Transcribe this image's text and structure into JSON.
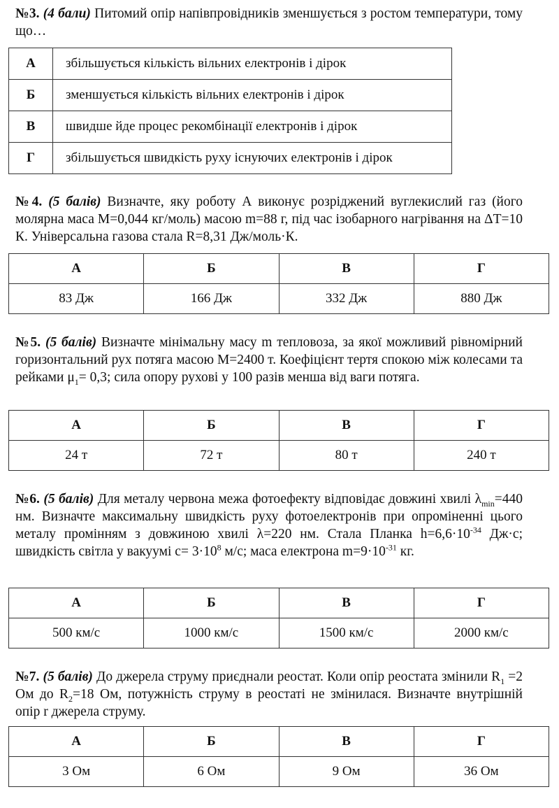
{
  "q3": {
    "num": "№3.",
    "points": "(4 бали)",
    "parts": [
      {
        "t": "Питомий опір напівпровідників зменшується з ростом температури, тому що…"
      }
    ],
    "options": [
      {
        "letter": "А",
        "text": "збільшується кількість вільних електронів і дірок"
      },
      {
        "letter": "Б",
        "text": "зменшується кількість вільних електронів і дірок"
      },
      {
        "letter": "В",
        "text": "швидше йде процес рекомбінації електронів і дірок"
      },
      {
        "letter": "Г",
        "text": "збільшується швидкість руху існуючих електронів і дірок"
      }
    ]
  },
  "q4": {
    "num": "№4.",
    "points": "(5 балів)",
    "parts": [
      {
        "t": "Визначте, яку роботу А виконує розріджений вуглекислий газ (його молярна маса М=0,044 кг/моль) масою m=88 г, під час ізобарного нагрівання на ΔТ=10 К. Універсальна газова стала R=8,31 Дж/моль·К."
      }
    ],
    "letters": [
      "А",
      "Б",
      "В",
      "Г"
    ],
    "answers": [
      "83 Дж",
      "166 Дж",
      "332 Дж",
      "880 Дж"
    ]
  },
  "q5": {
    "num": "№5.",
    "points": "(5 балів)",
    "parts": [
      {
        "t": "Визначте мінімальну масу m тепловоза, за якої можливий рівномірний горизонтальний рух потяга масою М=2400 т. Коефіцієнт тертя спокою між колесами та рейками μ"
      },
      {
        "t": "1",
        "s": "sub"
      },
      {
        "t": "= 0,3; сила опору рухові у 100 разів менша від ваги потяга."
      }
    ],
    "letters": [
      "А",
      "Б",
      "В",
      "Г"
    ],
    "answers": [
      "24 т",
      "72 т",
      "80 т",
      "240 т"
    ]
  },
  "q6": {
    "num": "№6.",
    "points": "(5 балів)",
    "parts": [
      {
        "t": "Для металу червона межа фотоефекту відповідає довжині хвилі λ"
      },
      {
        "t": "min",
        "s": "sub"
      },
      {
        "t": "=440 нм. Визначте максимальну швидкість руху фотоелектронів при опроміненні цього металу промінням з довжиною хвилі λ=220 нм. Стала Планка h=6,6·10"
      },
      {
        "t": "-34",
        "s": "sup"
      },
      {
        "t": " Дж·с; швидкість світла у вакуумі с= 3·10"
      },
      {
        "t": "8",
        "s": "sup"
      },
      {
        "t": " м/с; маса електрона m=9·10"
      },
      {
        "t": "-31",
        "s": "sup"
      },
      {
        "t": " кг."
      }
    ],
    "letters": [
      "А",
      "Б",
      "В",
      "Г"
    ],
    "answers": [
      "500 км/с",
      "1000 км/с",
      "1500 км/с",
      "2000 км/с"
    ]
  },
  "q7": {
    "num": "№7.",
    "points": "(5 балів)",
    "parts": [
      {
        "t": "До джерела струму приєднали реостат. Коли опір реостата змінили R"
      },
      {
        "t": "1",
        "s": "sub"
      },
      {
        "t": " =2 Ом до R"
      },
      {
        "t": "2",
        "s": "sub"
      },
      {
        "t": "=18 Ом, потужність струму в реостаті не змінилася. Визначте внутрішній опір r джерела струму."
      }
    ],
    "letters": [
      "А",
      "Б",
      "В",
      "Г"
    ],
    "answers": [
      "3 Ом",
      "6 Ом",
      "9 Ом",
      "36 Ом"
    ]
  }
}
